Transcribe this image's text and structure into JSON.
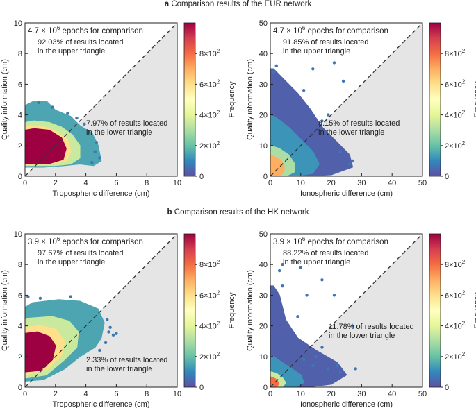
{
  "sections": [
    {
      "letter": "a",
      "title": "Comparison results of the EUR network"
    },
    {
      "letter": "b",
      "title": "Comparison results of the HK network"
    }
  ],
  "colorbar": {
    "label": "Frequency",
    "ticks": [
      "0",
      "2×10²",
      "4×10²",
      "6×10²",
      "8×10²"
    ],
    "tick_values": [
      0,
      200,
      400,
      600,
      800
    ],
    "max": 1000
  },
  "chart_data": [
    {
      "type": "heatmap",
      "id": "eur-trop",
      "section": "a",
      "title": "",
      "xlabel": "Tropospheric difference (cm)",
      "ylabel": "Quality information (cm)",
      "xlim": [
        0,
        10
      ],
      "ylim": [
        0,
        10
      ],
      "xticks": [
        0,
        2,
        4,
        6,
        8,
        10
      ],
      "yticks": [
        0,
        2,
        4,
        6,
        8,
        10
      ],
      "epochs_mantissa": "4.7",
      "epochs_exponent": "6",
      "epochs_suffix": " epochs for comparison",
      "upper_text": [
        "92.03% of results located",
        "in the upper triangle"
      ],
      "lower_text": [
        "7.97% of results located",
        "in the lower triangle"
      ],
      "upper_pct": 92.03,
      "lower_pct": 7.97,
      "colorbar_max": 1000,
      "diagonal": true,
      "density_regions": [
        {
          "shape": "hull",
          "level": 150,
          "points": [
            [
              0,
              0.6
            ],
            [
              1.2,
              0.6
            ],
            [
              2.6,
              0.7
            ],
            [
              3.6,
              0.8
            ],
            [
              4.5,
              0.7
            ],
            [
              5.0,
              1.0
            ],
            [
              4.8,
              2.0
            ],
            [
              4.4,
              2.8
            ],
            [
              3.6,
              3.3
            ],
            [
              3.0,
              3.9
            ],
            [
              2.0,
              4.3
            ],
            [
              1.4,
              4.9
            ],
            [
              0.6,
              4.9
            ],
            [
              0,
              4.6
            ]
          ]
        },
        {
          "shape": "hull",
          "level": 350,
          "points": [
            [
              0,
              0.7
            ],
            [
              2.0,
              0.7
            ],
            [
              3.0,
              0.8
            ],
            [
              3.6,
              1.2
            ],
            [
              3.6,
              2.0
            ],
            [
              3.1,
              2.7
            ],
            [
              2.4,
              3.2
            ],
            [
              1.6,
              3.5
            ],
            [
              0.6,
              3.6
            ],
            [
              0,
              3.5
            ]
          ]
        },
        {
          "shape": "hull",
          "level": 600,
          "points": [
            [
              0,
              0.75
            ],
            [
              1.8,
              0.8
            ],
            [
              2.7,
              1.0
            ],
            [
              3.0,
              1.6
            ],
            [
              2.8,
              2.4
            ],
            [
              2.1,
              2.9
            ],
            [
              1.3,
              3.2
            ],
            [
              0.3,
              3.3
            ],
            [
              0,
              3.2
            ]
          ]
        },
        {
          "shape": "hull",
          "level": 1000,
          "points": [
            [
              0,
              0.8
            ],
            [
              1.5,
              0.8
            ],
            [
              2.5,
              1.1
            ],
            [
              2.7,
              1.8
            ],
            [
              2.4,
              2.5
            ],
            [
              1.6,
              3.0
            ],
            [
              0.6,
              3.1
            ],
            [
              0,
              3.0
            ]
          ]
        }
      ],
      "scatter_points": [
        [
          4.2,
          2.9
        ],
        [
          4.6,
          1.6
        ],
        [
          4.9,
          1.2
        ],
        [
          3.9,
          3.4
        ],
        [
          2.8,
          4.1
        ],
        [
          1.8,
          4.5
        ],
        [
          0.9,
          4.8
        ],
        [
          4.4,
          0.9
        ],
        [
          3.4,
          3.8
        ],
        [
          4.7,
          2.2
        ]
      ]
    },
    {
      "type": "heatmap",
      "id": "eur-iono",
      "section": "a",
      "title": "",
      "xlabel": "Ionospheric difference (cm)",
      "ylabel": "Quality information (cm)",
      "xlim": [
        0,
        50
      ],
      "ylim": [
        0,
        50
      ],
      "xticks": [
        0,
        10,
        20,
        30,
        40,
        50
      ],
      "yticks": [
        0,
        10,
        20,
        30,
        40,
        50
      ],
      "epochs_mantissa": "4.7",
      "epochs_exponent": "6",
      "epochs_suffix": " epochs for comparison",
      "upper_text": [
        "91.85% of results located",
        "in the upper triangle"
      ],
      "lower_text": [
        "8.15% of results located",
        "in the lower triangle"
      ],
      "upper_pct": 91.85,
      "lower_pct": 8.15,
      "colorbar_max": 1000,
      "diagonal": true,
      "density_regions": [
        {
          "shape": "hull",
          "level": 30,
          "points": [
            [
              0,
              0
            ],
            [
              10,
              0
            ],
            [
              20,
              0.5
            ],
            [
              27,
              3
            ],
            [
              26,
              7
            ],
            [
              22,
              11
            ],
            [
              17,
              16
            ],
            [
              13,
              22
            ],
            [
              9,
              27
            ],
            [
              5,
              31
            ],
            [
              1,
              35
            ],
            [
              0,
              35
            ]
          ]
        },
        {
          "shape": "hull",
          "level": 120,
          "points": [
            [
              0,
              0
            ],
            [
              8,
              0
            ],
            [
              14,
              1
            ],
            [
              16,
              4
            ],
            [
              14,
              8
            ],
            [
              10,
              12
            ],
            [
              6,
              16
            ],
            [
              2,
              19
            ],
            [
              0,
              20
            ]
          ]
        },
        {
          "shape": "hull",
          "level": 300,
          "points": [
            [
              0,
              0
            ],
            [
              5,
              0
            ],
            [
              8,
              1.5
            ],
            [
              8,
              4
            ],
            [
              6,
              7
            ],
            [
              3,
              9
            ],
            [
              0,
              10
            ]
          ]
        },
        {
          "shape": "hull",
          "level": 700,
          "points": [
            [
              0,
              0
            ],
            [
              3,
              0
            ],
            [
              4.5,
              1.5
            ],
            [
              4.5,
              3.5
            ],
            [
              3,
              5.5
            ],
            [
              1,
              6.5
            ],
            [
              0,
              7
            ]
          ]
        }
      ],
      "scatter_points": [
        [
          21,
          37
        ],
        [
          14,
          35
        ],
        [
          24,
          31
        ],
        [
          23,
          8
        ],
        [
          27,
          5
        ],
        [
          19,
          20
        ],
        [
          2,
          36
        ],
        [
          1,
          34
        ],
        [
          26,
          4
        ],
        [
          17,
          18
        ],
        [
          11,
          28
        ]
      ]
    },
    {
      "type": "heatmap",
      "id": "hk-trop",
      "section": "b",
      "title": "",
      "xlabel": "Tropospheric difference (cm)",
      "ylabel": "Quality information (cm)",
      "xlim": [
        0,
        10
      ],
      "ylim": [
        0,
        10
      ],
      "xticks": [
        0,
        2,
        4,
        6,
        8,
        10
      ],
      "yticks": [
        0,
        2,
        4,
        6,
        8,
        10
      ],
      "epochs_mantissa": "3.9",
      "epochs_exponent": "6",
      "epochs_suffix": " epochs for comparison",
      "upper_text": [
        "97.67% of results located",
        "in the upper triangle"
      ],
      "lower_text": [
        "2.33% of results located",
        "in the lower triangle"
      ],
      "upper_pct": 97.67,
      "lower_pct": 2.33,
      "colorbar_max": 1000,
      "diagonal": true,
      "density_regions": [
        {
          "shape": "hull",
          "level": 150,
          "points": [
            [
              0,
              0.4
            ],
            [
              1.2,
              0.5
            ],
            [
              2.6,
              1.2
            ],
            [
              3.6,
              2.0
            ],
            [
              4.6,
              2.6
            ],
            [
              5.0,
              3.2
            ],
            [
              5.2,
              4.2
            ],
            [
              4.8,
              5.1
            ],
            [
              3.6,
              5.6
            ],
            [
              2.2,
              5.7
            ],
            [
              0.5,
              5.5
            ],
            [
              0,
              5.2
            ]
          ]
        },
        {
          "shape": "hull",
          "level": 350,
          "points": [
            [
              0,
              0.6
            ],
            [
              1.4,
              0.8
            ],
            [
              2.6,
              1.8
            ],
            [
              3.4,
              2.6
            ],
            [
              3.5,
              3.6
            ],
            [
              2.9,
              4.3
            ],
            [
              1.8,
              4.6
            ],
            [
              0.3,
              4.5
            ],
            [
              0,
              4.4
            ]
          ]
        },
        {
          "shape": "hull",
          "level": 600,
          "points": [
            [
              0,
              0.8
            ],
            [
              1.5,
              1.2
            ],
            [
              2.4,
              2.1
            ],
            [
              2.6,
              3.0
            ],
            [
              2.0,
              3.8
            ],
            [
              1.0,
              4.0
            ],
            [
              0,
              3.9
            ]
          ]
        },
        {
          "shape": "hull",
          "level": 1000,
          "points": [
            [
              0,
              1.0
            ],
            [
              1.0,
              1.1
            ],
            [
              1.8,
              1.8
            ],
            [
              2.0,
              2.7
            ],
            [
              1.6,
              3.3
            ],
            [
              0.8,
              3.6
            ],
            [
              0,
              3.5
            ]
          ]
        }
      ],
      "scatter_points": [
        [
          5.5,
          3.6
        ],
        [
          5.8,
          3.4
        ],
        [
          6.0,
          3.5
        ],
        [
          5.3,
          2.9
        ],
        [
          5.6,
          3.9
        ],
        [
          4.9,
          2.4
        ],
        [
          5.4,
          4.4
        ],
        [
          0.2,
          5.9
        ],
        [
          1.0,
          5.8
        ],
        [
          3.0,
          5.9
        ]
      ]
    },
    {
      "type": "heatmap",
      "id": "hk-iono",
      "section": "b",
      "title": "",
      "xlabel": "Ionospheric difference (cm)",
      "ylabel": "Quality information (cm)",
      "xlim": [
        0,
        50
      ],
      "ylim": [
        0,
        50
      ],
      "xticks": [
        0,
        10,
        20,
        30,
        40,
        50
      ],
      "yticks": [
        0,
        10,
        20,
        30,
        40,
        50
      ],
      "epochs_mantissa": "3.9",
      "epochs_exponent": "6",
      "epochs_suffix": " epochs for comparison",
      "upper_text": [
        "88.22% of results located",
        "in the upper triangle"
      ],
      "lower_text": [
        "11.78% of results located",
        "in the lower triangle"
      ],
      "upper_pct": 88.22,
      "lower_pct": 11.78,
      "colorbar_max": 1000,
      "diagonal": true,
      "density_regions": [
        {
          "shape": "hull",
          "level": 30,
          "points": [
            [
              0,
              0
            ],
            [
              12,
              0
            ],
            [
              20,
              1
            ],
            [
              25,
              4
            ],
            [
              22,
              8
            ],
            [
              15,
              12
            ],
            [
              9,
              16
            ],
            [
              5,
              22
            ],
            [
              3,
              30
            ],
            [
              1,
              33
            ],
            [
              0,
              33
            ]
          ]
        },
        {
          "shape": "hull",
          "level": 120,
          "points": [
            [
              0,
              0
            ],
            [
              8,
              0
            ],
            [
              11,
              1.5
            ],
            [
              10,
              4
            ],
            [
              7,
              6
            ],
            [
              4,
              8
            ],
            [
              1,
              10
            ],
            [
              0,
              10
            ]
          ]
        },
        {
          "shape": "hull",
          "level": 350,
          "points": [
            [
              0,
              0
            ],
            [
              4,
              0
            ],
            [
              5,
              1.5
            ],
            [
              4,
              3
            ],
            [
              2,
              4.5
            ],
            [
              0,
              5
            ]
          ]
        },
        {
          "shape": "hull",
          "level": 800,
          "points": [
            [
              0,
              0
            ],
            [
              2,
              0
            ],
            [
              2.8,
              1.2
            ],
            [
              2,
              2.5
            ],
            [
              0.8,
              3.2
            ],
            [
              0,
              3.3
            ]
          ]
        }
      ],
      "scatter_points": [
        [
          4,
          40
        ],
        [
          3,
          38
        ],
        [
          10,
          39
        ],
        [
          17,
          35
        ],
        [
          21,
          30
        ],
        [
          27,
          20
        ],
        [
          17,
          13
        ],
        [
          15,
          10
        ],
        [
          14,
          7
        ],
        [
          19,
          6
        ],
        [
          23,
          5
        ],
        [
          28,
          6
        ],
        [
          9,
          23
        ],
        [
          12,
          30
        ],
        [
          4,
          33
        ],
        [
          22,
          7
        ],
        [
          11,
          9
        ]
      ]
    }
  ]
}
